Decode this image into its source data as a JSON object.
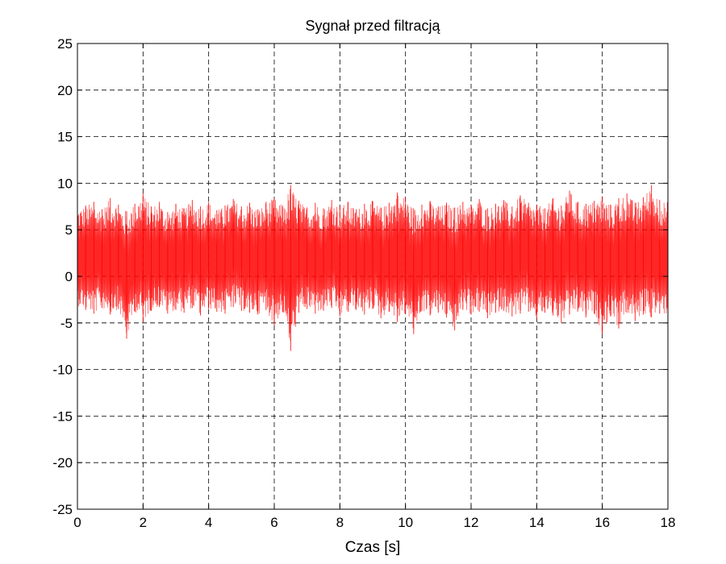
{
  "chart_data": {
    "type": "line",
    "title": "Sygnał przed filtracją",
    "xlabel": "Czas [s]",
    "ylabel": "",
    "xlim": [
      0,
      18
    ],
    "ylim": [
      -25,
      25
    ],
    "x_ticks": [
      0,
      2,
      4,
      6,
      8,
      10,
      12,
      14,
      16,
      18
    ],
    "x_tick_labels": [
      "0",
      "2",
      "4",
      "6",
      "8",
      "10",
      "12",
      "14",
      "16",
      "18"
    ],
    "y_ticks": [
      25,
      20,
      15,
      10,
      5,
      0,
      -5,
      -10,
      -15,
      -20,
      -25
    ],
    "y_tick_labels": [
      "25",
      "20",
      "15",
      "10",
      "5",
      "0",
      "-5",
      "-10",
      "-15",
      "-20",
      "-25"
    ],
    "grid": true,
    "series": [
      {
        "color": "#ff0000",
        "x": [
          0,
          0.25,
          0.5,
          0.75,
          1,
          1.25,
          1.5,
          1.75,
          2,
          2.25,
          2.5,
          2.75,
          3,
          3.25,
          3.5,
          3.75,
          4,
          4.25,
          4.5,
          4.75,
          5,
          5.25,
          5.5,
          5.75,
          6,
          6.25,
          6.5,
          6.75,
          7,
          7.25,
          7.5,
          7.75,
          8,
          8.25,
          8.5,
          8.75,
          9,
          9.25,
          9.5,
          9.75,
          10,
          10.25,
          10.5,
          10.75,
          11,
          11.25,
          11.5,
          11.75,
          12,
          12.25,
          12.5,
          12.75,
          13,
          13.25,
          13.5,
          13.75,
          14,
          14.25,
          14.5,
          14.75,
          15,
          15.25,
          15.5,
          15.75,
          16,
          16.25,
          16.5,
          16.75,
          17,
          17.25,
          17.5,
          17.75,
          18
        ],
        "upper_envelope": [
          7.4,
          7.6,
          8.0,
          7.2,
          8.4,
          7.7,
          7.0,
          7.8,
          8.9,
          7.5,
          8.0,
          6.9,
          7.8,
          7.3,
          8.2,
          7.5,
          8.0,
          7.1,
          7.6,
          8.3,
          7.5,
          7.9,
          7.2,
          8.0,
          8.4,
          7.6,
          9.8,
          8.1,
          7.4,
          7.9,
          7.3,
          8.2,
          7.6,
          8.0,
          7.2,
          7.8,
          8.1,
          7.4,
          7.9,
          9.0,
          8.5,
          7.3,
          7.7,
          8.1,
          7.5,
          7.9,
          7.4,
          8.0,
          7.6,
          8.3,
          7.3,
          7.8,
          8.2,
          7.5,
          8.7,
          7.9,
          7.7,
          7.3,
          8.4,
          7.6,
          9.2,
          8.0,
          7.8,
          8.1,
          8.6,
          7.7,
          8.4,
          8.9,
          7.9,
          8.5,
          9.8,
          8.2,
          8.0
        ],
        "lower_envelope": [
          -3.2,
          -3.6,
          -4.0,
          -3.4,
          -4.1,
          -3.5,
          -6.7,
          -3.8,
          -4.9,
          -3.7,
          -3.3,
          -4.0,
          -3.6,
          -3.9,
          -3.4,
          -4.2,
          -3.5,
          -3.8,
          -4.0,
          -3.3,
          -3.7,
          -3.9,
          -4.1,
          -3.6,
          -5.3,
          -3.8,
          -8.0,
          -3.9,
          -3.5,
          -4.0,
          -3.7,
          -3.4,
          -4.3,
          -3.8,
          -3.6,
          -4.1,
          -3.5,
          -4.5,
          -3.8,
          -4.9,
          -4.0,
          -6.2,
          -3.7,
          -4.2,
          -3.9,
          -4.4,
          -5.8,
          -3.6,
          -4.1,
          -3.8,
          -4.5,
          -3.9,
          -3.7,
          -4.3,
          -4.0,
          -3.8,
          -4.6,
          -3.9,
          -4.2,
          -5.0,
          -4.1,
          -3.8,
          -4.4,
          -4.0,
          -6.2,
          -4.3,
          -5.6,
          -3.9,
          -4.8,
          -4.1,
          -4.4,
          -4.0,
          -4.2
        ]
      }
    ]
  }
}
